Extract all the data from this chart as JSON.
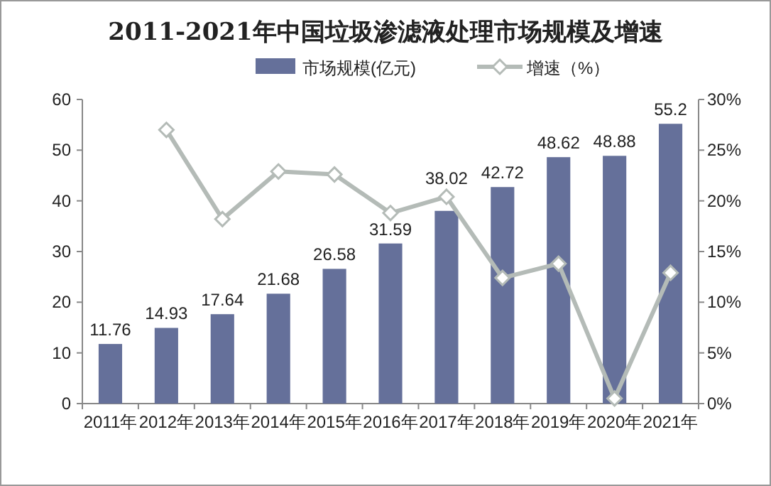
{
  "chart_data": {
    "type": "bar",
    "title": "2011-2021年中国垃圾渗滤液处理市场规模及增速",
    "categories": [
      "2011年",
      "2012年",
      "2013年",
      "2014年",
      "2015年",
      "2016年",
      "2017年",
      "2018年",
      "2019年",
      "2020年",
      "2021年"
    ],
    "series": [
      {
        "name": "市场规模(亿元)",
        "color": "#65709a",
        "values": [
          11.76,
          14.93,
          17.64,
          21.68,
          26.58,
          31.59,
          38.02,
          42.72,
          48.62,
          48.88,
          55.2
        ],
        "value_labels": [
          "11.76",
          "14.93",
          "17.64",
          "21.68",
          "26.58",
          "31.59",
          "38.02",
          "42.72",
          "48.62",
          "48.88",
          "55.2"
        ]
      },
      {
        "name": "增速（%）",
        "type": "line",
        "axis": "y2",
        "color": "#b4bbb7",
        "marker": "diamond",
        "values": [
          null,
          27.0,
          18.2,
          22.9,
          22.6,
          18.8,
          20.4,
          12.4,
          13.8,
          0.5,
          12.9
        ]
      }
    ],
    "ylim": [
      0,
      60
    ],
    "yticks": [
      0,
      10,
      20,
      30,
      40,
      50,
      60
    ],
    "y2lim": [
      0,
      30
    ],
    "y2ticks": [
      {
        "value": 0,
        "label": "0%"
      },
      {
        "value": 5,
        "label": "5%"
      },
      {
        "value": 10,
        "label": "10%"
      },
      {
        "value": 15,
        "label": "15%"
      },
      {
        "value": 20,
        "label": "20%"
      },
      {
        "value": 25,
        "label": "25%"
      },
      {
        "value": 30,
        "label": "30%"
      }
    ],
    "legend": "top",
    "grid": false
  }
}
